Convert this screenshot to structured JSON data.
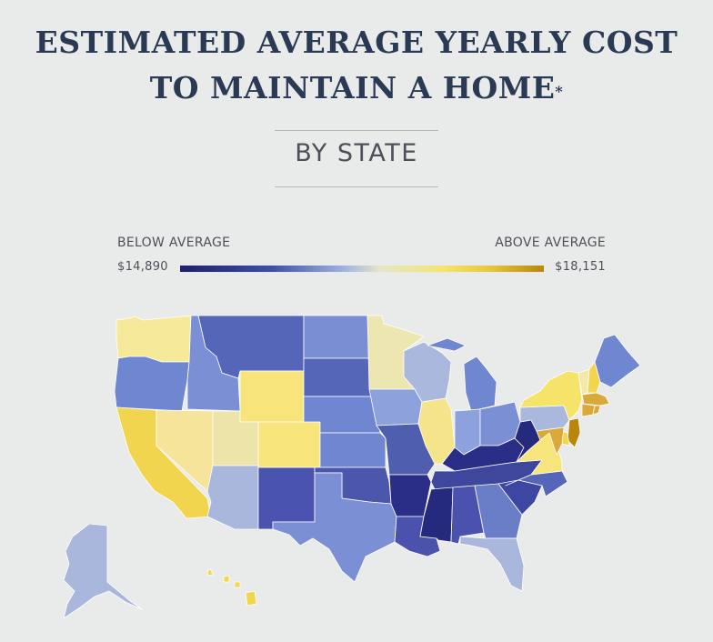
{
  "title": {
    "line1": "ESTIMATED AVERAGE YEARLY COST",
    "line2": "TO MAINTAIN A HOME",
    "asterisk": "*"
  },
  "subtitle": "BY STATE",
  "legend": {
    "below_label": "BELOW AVERAGE",
    "above_label": "ABOVE AVERAGE",
    "min_value": "$14,890",
    "max_value": "$18,151",
    "scale_colors": [
      "#1f1f6a",
      "#3c4fa8",
      "#9fb3df",
      "#e6e6c8",
      "#f4e56e",
      "#e8c83a",
      "#b8860b"
    ]
  },
  "map": {
    "land_color": "#7f93d6",
    "states": [
      {
        "id": "WA",
        "color": "#f6ea9a"
      },
      {
        "id": "OR",
        "color": "#6f86d0"
      },
      {
        "id": "CA",
        "color": "#f2d54e"
      },
      {
        "id": "NV",
        "color": "#f6e49a"
      },
      {
        "id": "ID",
        "color": "#7b90d4"
      },
      {
        "id": "MT",
        "color": "#5565b8"
      },
      {
        "id": "WY",
        "color": "#f7e57c"
      },
      {
        "id": "UT",
        "color": "#ece4a8"
      },
      {
        "id": "AZ",
        "color": "#a9b7dc"
      },
      {
        "id": "CO",
        "color": "#f7e57c"
      },
      {
        "id": "NM",
        "color": "#4a54ae"
      },
      {
        "id": "ND",
        "color": "#7a8ed4"
      },
      {
        "id": "SD",
        "color": "#5565b8"
      },
      {
        "id": "NE",
        "color": "#6f86d0"
      },
      {
        "id": "KS",
        "color": "#6f86d0"
      },
      {
        "id": "OK",
        "color": "#4a57ad"
      },
      {
        "id": "TX",
        "color": "#7b90d4"
      },
      {
        "id": "MN",
        "color": "#ece6b0"
      },
      {
        "id": "IA",
        "color": "#8da2dc"
      },
      {
        "id": "MO",
        "color": "#4f5fae"
      },
      {
        "id": "AR",
        "color": "#2b2e86"
      },
      {
        "id": "LA",
        "color": "#4a52ad"
      },
      {
        "id": "WI",
        "color": "#aab8de"
      },
      {
        "id": "IL",
        "color": "#f6e48a"
      },
      {
        "id": "MI",
        "color": "#6f86d0"
      },
      {
        "id": "IN",
        "color": "#8da2dc"
      },
      {
        "id": "OH",
        "color": "#7b90d4"
      },
      {
        "id": "KY",
        "color": "#2b2e86"
      },
      {
        "id": "TN",
        "color": "#3f479c"
      },
      {
        "id": "MS",
        "color": "#262a7c"
      },
      {
        "id": "AL",
        "color": "#4a52ad"
      },
      {
        "id": "GA",
        "color": "#6a7ec8"
      },
      {
        "id": "FL",
        "color": "#a9b7dc"
      },
      {
        "id": "SC",
        "color": "#3d46a0"
      },
      {
        "id": "NC",
        "color": "#5565b8"
      },
      {
        "id": "VA",
        "color": "#f7e57c"
      },
      {
        "id": "WV",
        "color": "#262a7c"
      },
      {
        "id": "PA",
        "color": "#aab8de"
      },
      {
        "id": "NY",
        "color": "#f6e46a"
      },
      {
        "id": "VT",
        "color": "#f3e9a8"
      },
      {
        "id": "NH",
        "color": "#f2d54e"
      },
      {
        "id": "ME",
        "color": "#6f86d0"
      },
      {
        "id": "MA",
        "color": "#d9a93a"
      },
      {
        "id": "CT",
        "color": "#d9a93a"
      },
      {
        "id": "RI",
        "color": "#d9a93a"
      },
      {
        "id": "NJ",
        "color": "#b8860b"
      },
      {
        "id": "DE",
        "color": "#f2d54e"
      },
      {
        "id": "MD",
        "color": "#d9a93a"
      },
      {
        "id": "AK",
        "color": "#a9b7dc"
      },
      {
        "id": "HI",
        "color": "#f2d54e"
      }
    ]
  }
}
